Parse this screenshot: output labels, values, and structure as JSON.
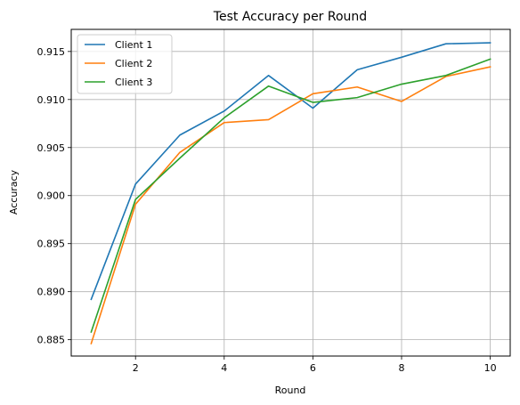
{
  "chart_data": {
    "type": "line",
    "title": "Test Accuracy per Round",
    "xlabel": "Round",
    "ylabel": "Accuracy",
    "xlim": [
      0.55,
      10.45
    ],
    "ylim": [
      0.8833,
      0.9173
    ],
    "xticks": [
      2,
      4,
      6,
      8,
      10
    ],
    "xtick_labels": [
      "2",
      "4",
      "6",
      "8",
      "10"
    ],
    "yticks": [
      0.885,
      0.89,
      0.895,
      0.9,
      0.905,
      0.91,
      0.915
    ],
    "ytick_labels": [
      "0.885",
      "0.890",
      "0.895",
      "0.900",
      "0.905",
      "0.910",
      "0.915"
    ],
    "grid": true,
    "legend": "upper-left",
    "x": [
      1,
      2,
      3,
      4,
      5,
      6,
      7,
      8,
      9,
      10
    ],
    "series": [
      {
        "name": "Client 1",
        "color": "#1f77b4",
        "values": [
          0.8892,
          0.9012,
          0.9063,
          0.9088,
          0.9125,
          0.9091,
          0.9131,
          0.9144,
          0.9158,
          0.9159
        ]
      },
      {
        "name": "Client 2",
        "color": "#ff7f0e",
        "values": [
          0.8846,
          0.8991,
          0.9045,
          0.9076,
          0.9079,
          0.9106,
          0.9113,
          0.9098,
          0.9124,
          0.9134
        ]
      },
      {
        "name": "Client 3",
        "color": "#2ca02c",
        "values": [
          0.8858,
          0.8996,
          0.9039,
          0.9081,
          0.9114,
          0.9097,
          0.9102,
          0.9116,
          0.9125,
          0.9142
        ]
      }
    ]
  }
}
